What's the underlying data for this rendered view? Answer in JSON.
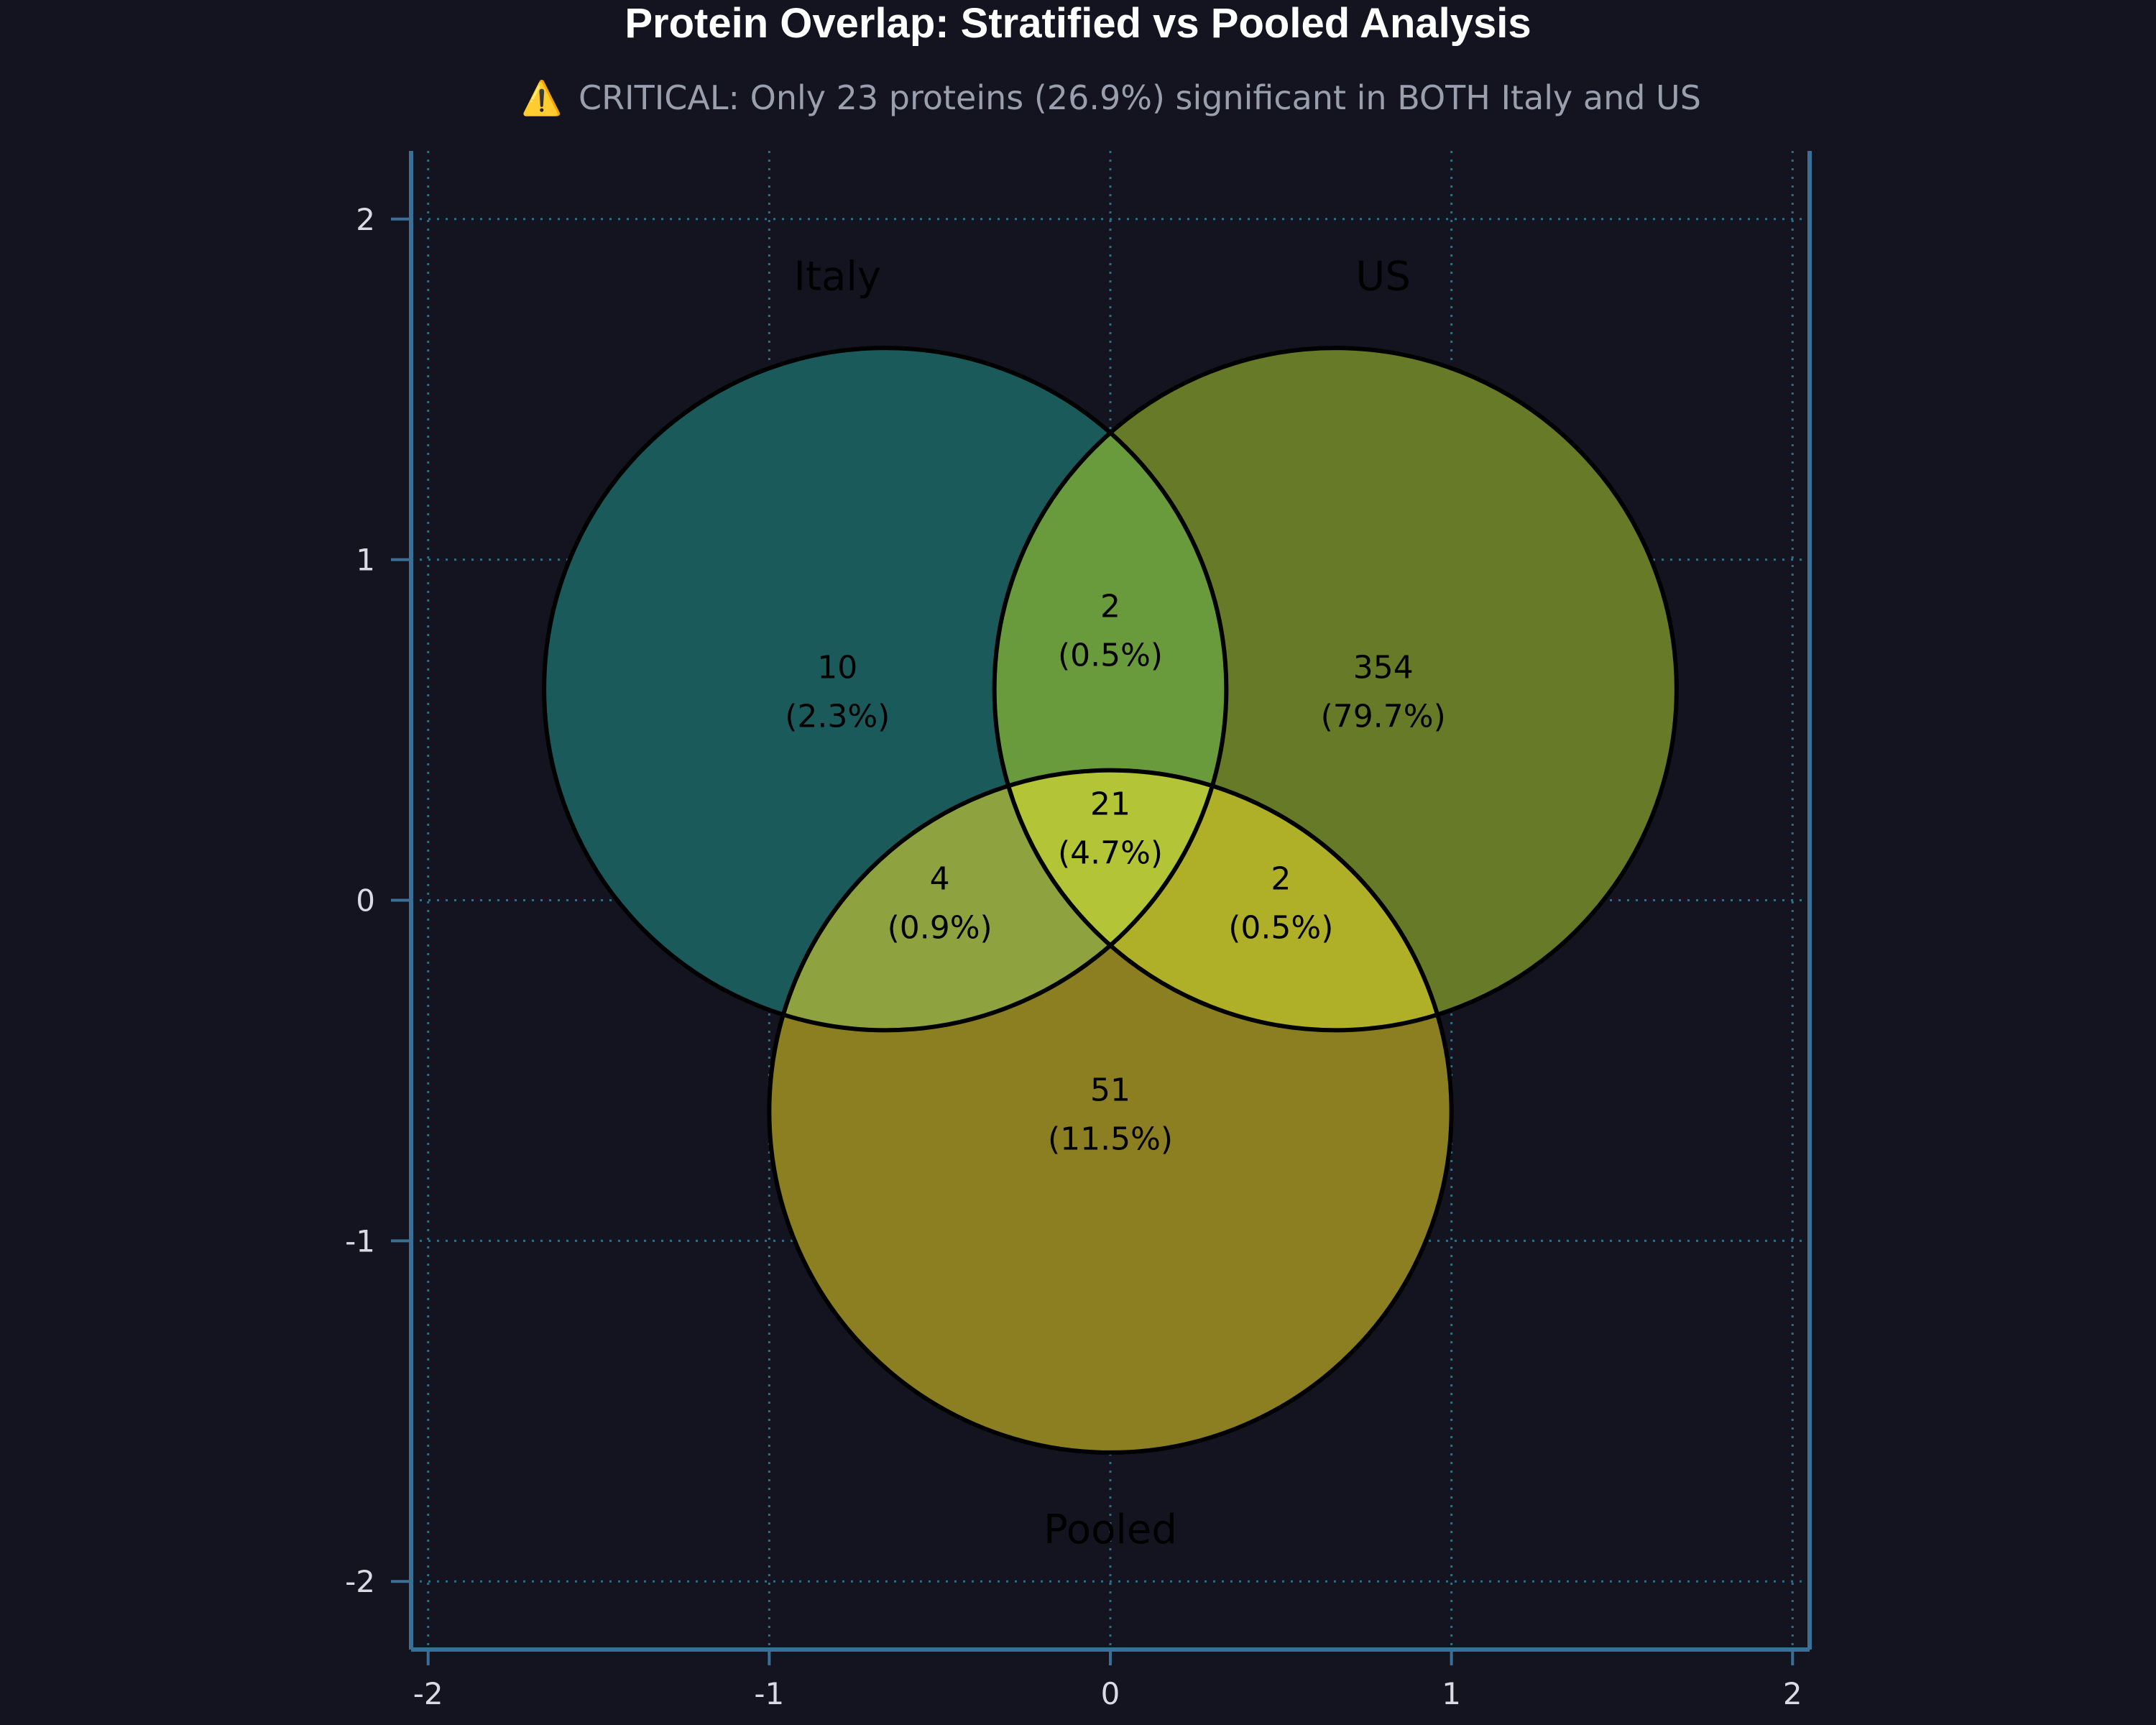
{
  "chart_data": {
    "type": "venn",
    "title": "Protein Overlap: Stratified vs Pooled Analysis",
    "subtitle_icon": "⚠️",
    "subtitle": "CRITICAL: Only 23 proteins (26.9%) significant in BOTH Italy and US",
    "xlim": [
      -2.05,
      2.05
    ],
    "ylim": [
      -2.2,
      2.2
    ],
    "grid": true,
    "xticks": [
      -2,
      -1,
      0,
      1,
      2
    ],
    "yticks": [
      -2,
      -1,
      0,
      1,
      2
    ],
    "sets": [
      {
        "name": "Italy",
        "center": [
          -0.66,
          0.62
        ],
        "radius": 1.0,
        "color": "#1b5a5a",
        "label_pos": [
          -0.8,
          1.83
        ]
      },
      {
        "name": "US",
        "center": [
          0.66,
          0.62
        ],
        "radius": 1.0,
        "color": "#667a27",
        "label_pos": [
          0.8,
          1.83
        ]
      },
      {
        "name": "Pooled",
        "center": [
          0.0,
          -0.62
        ],
        "radius": 1.0,
        "color": "#8b7f22",
        "label_pos": [
          0.0,
          -1.85
        ]
      }
    ],
    "regions": [
      {
        "sets": [
          "Italy"
        ],
        "count": "10",
        "percent": "(2.3%)",
        "pos": [
          -0.8,
          0.62
        ],
        "color": "#1b5a5a"
      },
      {
        "sets": [
          "US"
        ],
        "count": "354",
        "percent": "(79.7%)",
        "pos": [
          0.8,
          0.62
        ],
        "color": "#667a27"
      },
      {
        "sets": [
          "Pooled"
        ],
        "count": "51",
        "percent": "(11.5%)",
        "pos": [
          0.0,
          -0.62
        ],
        "color": "#8b7f22"
      },
      {
        "sets": [
          "Italy",
          "US"
        ],
        "count": "2",
        "percent": "(0.5%)",
        "pos": [
          0.0,
          0.8
        ],
        "color": "#699b3d"
      },
      {
        "sets": [
          "Italy",
          "Pooled"
        ],
        "count": "4",
        "percent": "(0.9%)",
        "pos": [
          -0.5,
          0.0
        ],
        "color": "#8ea23f"
      },
      {
        "sets": [
          "US",
          "Pooled"
        ],
        "count": "2",
        "percent": "(0.5%)",
        "pos": [
          0.5,
          0.0
        ],
        "color": "#afb027"
      },
      {
        "sets": [
          "Italy",
          "US",
          "Pooled"
        ],
        "count": "21",
        "percent": "(4.7%)",
        "pos": [
          0.0,
          0.22
        ],
        "color": "#b3c437"
      }
    ]
  }
}
